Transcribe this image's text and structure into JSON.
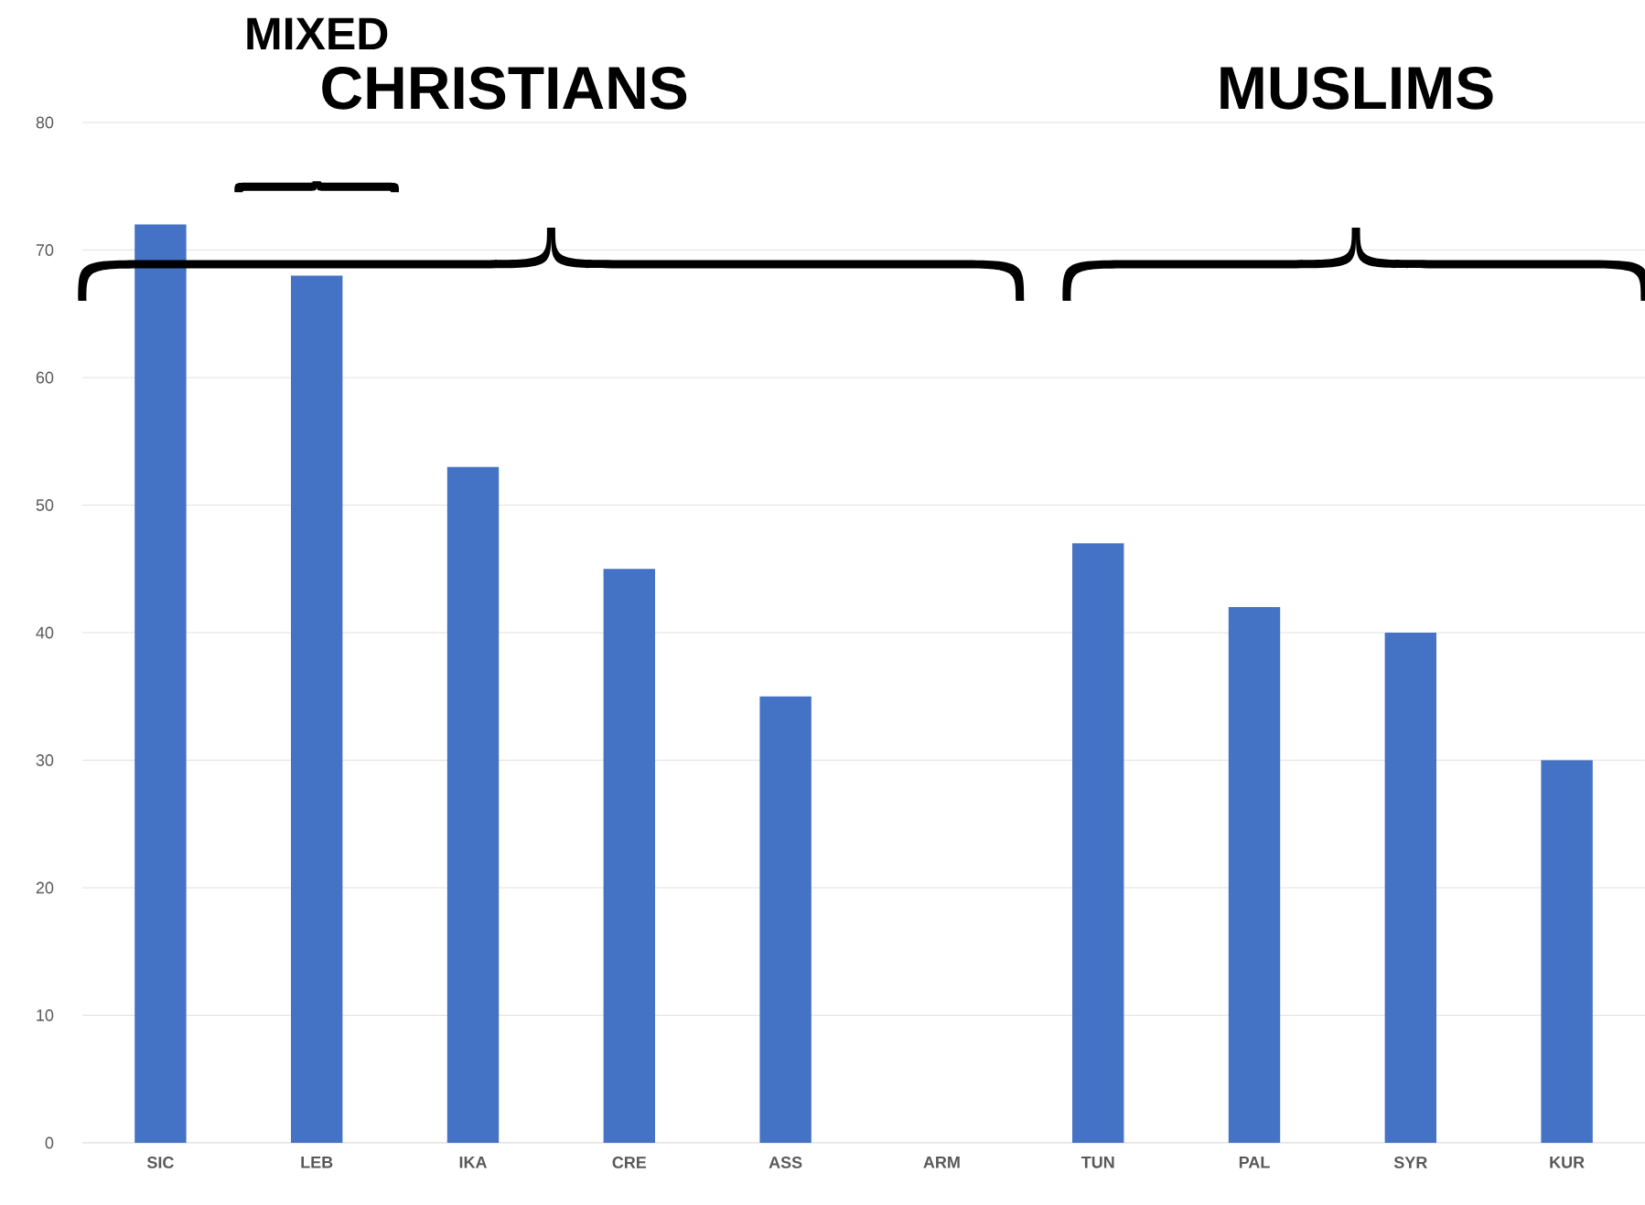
{
  "chart_data": {
    "type": "bar",
    "categories": [
      "SIC",
      "LEB",
      "IKA",
      "CRE",
      "ASS",
      "ARM",
      "TUN",
      "PAL",
      "SYR",
      "KUR"
    ],
    "values": [
      72,
      68,
      53,
      45,
      35,
      0,
      47,
      42,
      40,
      30
    ],
    "color": "#4472c4",
    "ylim": [
      0,
      80
    ],
    "yticks": [
      0,
      10,
      20,
      30,
      40,
      50,
      60,
      70,
      80
    ],
    "grid": "y",
    "annotations": [
      "MIXED",
      "CHRISTIANS",
      "MUSLIMS"
    ]
  }
}
